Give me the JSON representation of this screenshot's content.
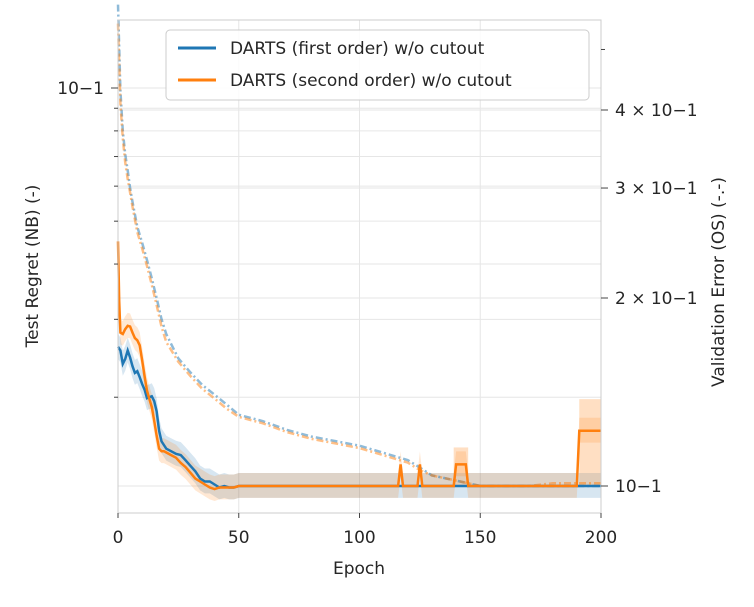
{
  "chart_data": {
    "type": "line",
    "xlabel": "Epoch",
    "ylabel_left": "Test Regret (NB) (-)",
    "ylabel_right": "Validation Error (OS) (-.-)",
    "xlim": [
      0,
      200
    ],
    "x_ticks": [
      "0",
      "50",
      "100",
      "150",
      "200"
    ],
    "y_left_scale": "log",
    "y_left_ticks": [
      "10−1"
    ],
    "y_right_scale": "log",
    "y_right_ticks": [
      "10−1",
      "2 × 10−1",
      "3 × 10−1",
      "4 × 10−1"
    ],
    "grid": true,
    "legend_placement": "top-right",
    "colors": {
      "first": "#1f77b4",
      "second": "#ff7f0e"
    },
    "series": [
      {
        "name": "DARTS (first order) w/o cutout",
        "axis": "left",
        "style": "solid",
        "x": [
          0,
          1,
          2,
          3,
          4,
          5,
          6,
          7,
          8,
          9,
          10,
          11,
          12,
          13,
          14,
          15,
          16,
          17,
          18,
          19,
          20,
          22,
          24,
          26,
          28,
          30,
          32,
          34,
          36,
          38,
          40,
          42,
          44,
          46,
          48,
          50,
          55,
          60,
          70,
          80,
          100,
          120,
          140,
          150,
          160,
          200
        ],
        "y": [
          0.026,
          0.0255,
          0.0238,
          0.0244,
          0.0255,
          0.0246,
          0.0235,
          0.0227,
          0.0229,
          0.0222,
          0.0214,
          0.0208,
          0.0199,
          0.02,
          0.0201,
          0.0196,
          0.0186,
          0.0168,
          0.0159,
          0.0156,
          0.0153,
          0.0151,
          0.0149,
          0.0148,
          0.0144,
          0.014,
          0.0136,
          0.0131,
          0.0129,
          0.0129,
          0.0127,
          0.0125,
          0.0126,
          0.0125,
          0.0125,
          0.0126,
          0.0126,
          0.0126,
          0.0126,
          0.0126,
          0.0126,
          0.0126,
          0.0126,
          0.0126,
          0.0126,
          0.0126
        ]
      },
      {
        "name": "DARTS (second order) w/o cutout",
        "axis": "left",
        "style": "solid",
        "x": [
          0,
          0.5,
          1,
          2,
          3,
          4,
          5,
          6,
          7,
          8,
          9,
          10,
          11,
          12,
          13,
          14,
          15,
          16,
          17,
          18,
          19,
          20,
          22,
          24,
          26,
          28,
          30,
          32,
          34,
          36,
          38,
          40,
          42,
          44,
          46,
          48,
          50,
          60,
          100,
          116,
          117,
          118,
          124,
          125,
          126,
          139,
          140,
          144,
          145,
          150,
          190,
          191,
          192,
          200
        ],
        "y": [
          0.045,
          0.033,
          0.028,
          0.0278,
          0.0285,
          0.029,
          0.0289,
          0.028,
          0.0272,
          0.0269,
          0.0262,
          0.0242,
          0.0223,
          0.0207,
          0.0198,
          0.019,
          0.0177,
          0.0164,
          0.0153,
          0.0151,
          0.0151,
          0.015,
          0.0148,
          0.0146,
          0.0142,
          0.0139,
          0.0135,
          0.0131,
          0.0129,
          0.0127,
          0.0125,
          0.0124,
          0.0125,
          0.0125,
          0.0125,
          0.0125,
          0.0126,
          0.0126,
          0.0126,
          0.0126,
          0.0141,
          0.0126,
          0.0126,
          0.0141,
          0.0126,
          0.0126,
          0.0141,
          0.0141,
          0.0126,
          0.0126,
          0.0126,
          0.0168,
          0.0168,
          0.0168
        ]
      },
      {
        "name": "",
        "axis": "right",
        "style": "dashdot",
        "x": [
          0,
          1,
          2,
          3,
          4,
          5,
          6,
          8,
          10,
          12,
          14,
          16,
          18,
          20,
          25,
          30,
          35,
          40,
          45,
          50,
          60,
          70,
          80,
          90,
          100,
          110,
          120,
          125,
          130,
          135,
          140,
          145,
          150,
          160,
          170,
          180,
          190,
          200
        ],
        "y": [
          0.59,
          0.43,
          0.37,
          0.34,
          0.32,
          0.3,
          0.285,
          0.26,
          0.245,
          0.23,
          0.215,
          0.2,
          0.185,
          0.175,
          0.16,
          0.152,
          0.145,
          0.14,
          0.135,
          0.13,
          0.127,
          0.123,
          0.12,
          0.118,
          0.116,
          0.113,
          0.11,
          0.107,
          0.104,
          0.103,
          0.102,
          0.101,
          0.1,
          0.1,
          0.1,
          0.1,
          0.1,
          0.1
        ]
      },
      {
        "name": "",
        "axis": "right",
        "style": "dashdot",
        "x": [
          0,
          1,
          2,
          3,
          4,
          5,
          6,
          8,
          10,
          12,
          14,
          16,
          18,
          20,
          25,
          30,
          35,
          40,
          45,
          50,
          60,
          70,
          80,
          90,
          100,
          110,
          120,
          125,
          130,
          135,
          140,
          145,
          150,
          160,
          170,
          180,
          190,
          200
        ],
        "y": [
          0.55,
          0.41,
          0.36,
          0.33,
          0.31,
          0.295,
          0.28,
          0.255,
          0.24,
          0.225,
          0.21,
          0.195,
          0.18,
          0.17,
          0.158,
          0.15,
          0.143,
          0.138,
          0.133,
          0.129,
          0.126,
          0.122,
          0.119,
          0.117,
          0.115,
          0.112,
          0.109,
          0.106,
          0.104,
          0.103,
          0.102,
          0.101,
          0.1,
          0.1,
          0.1,
          0.101,
          0.101,
          0.101
        ]
      }
    ]
  }
}
